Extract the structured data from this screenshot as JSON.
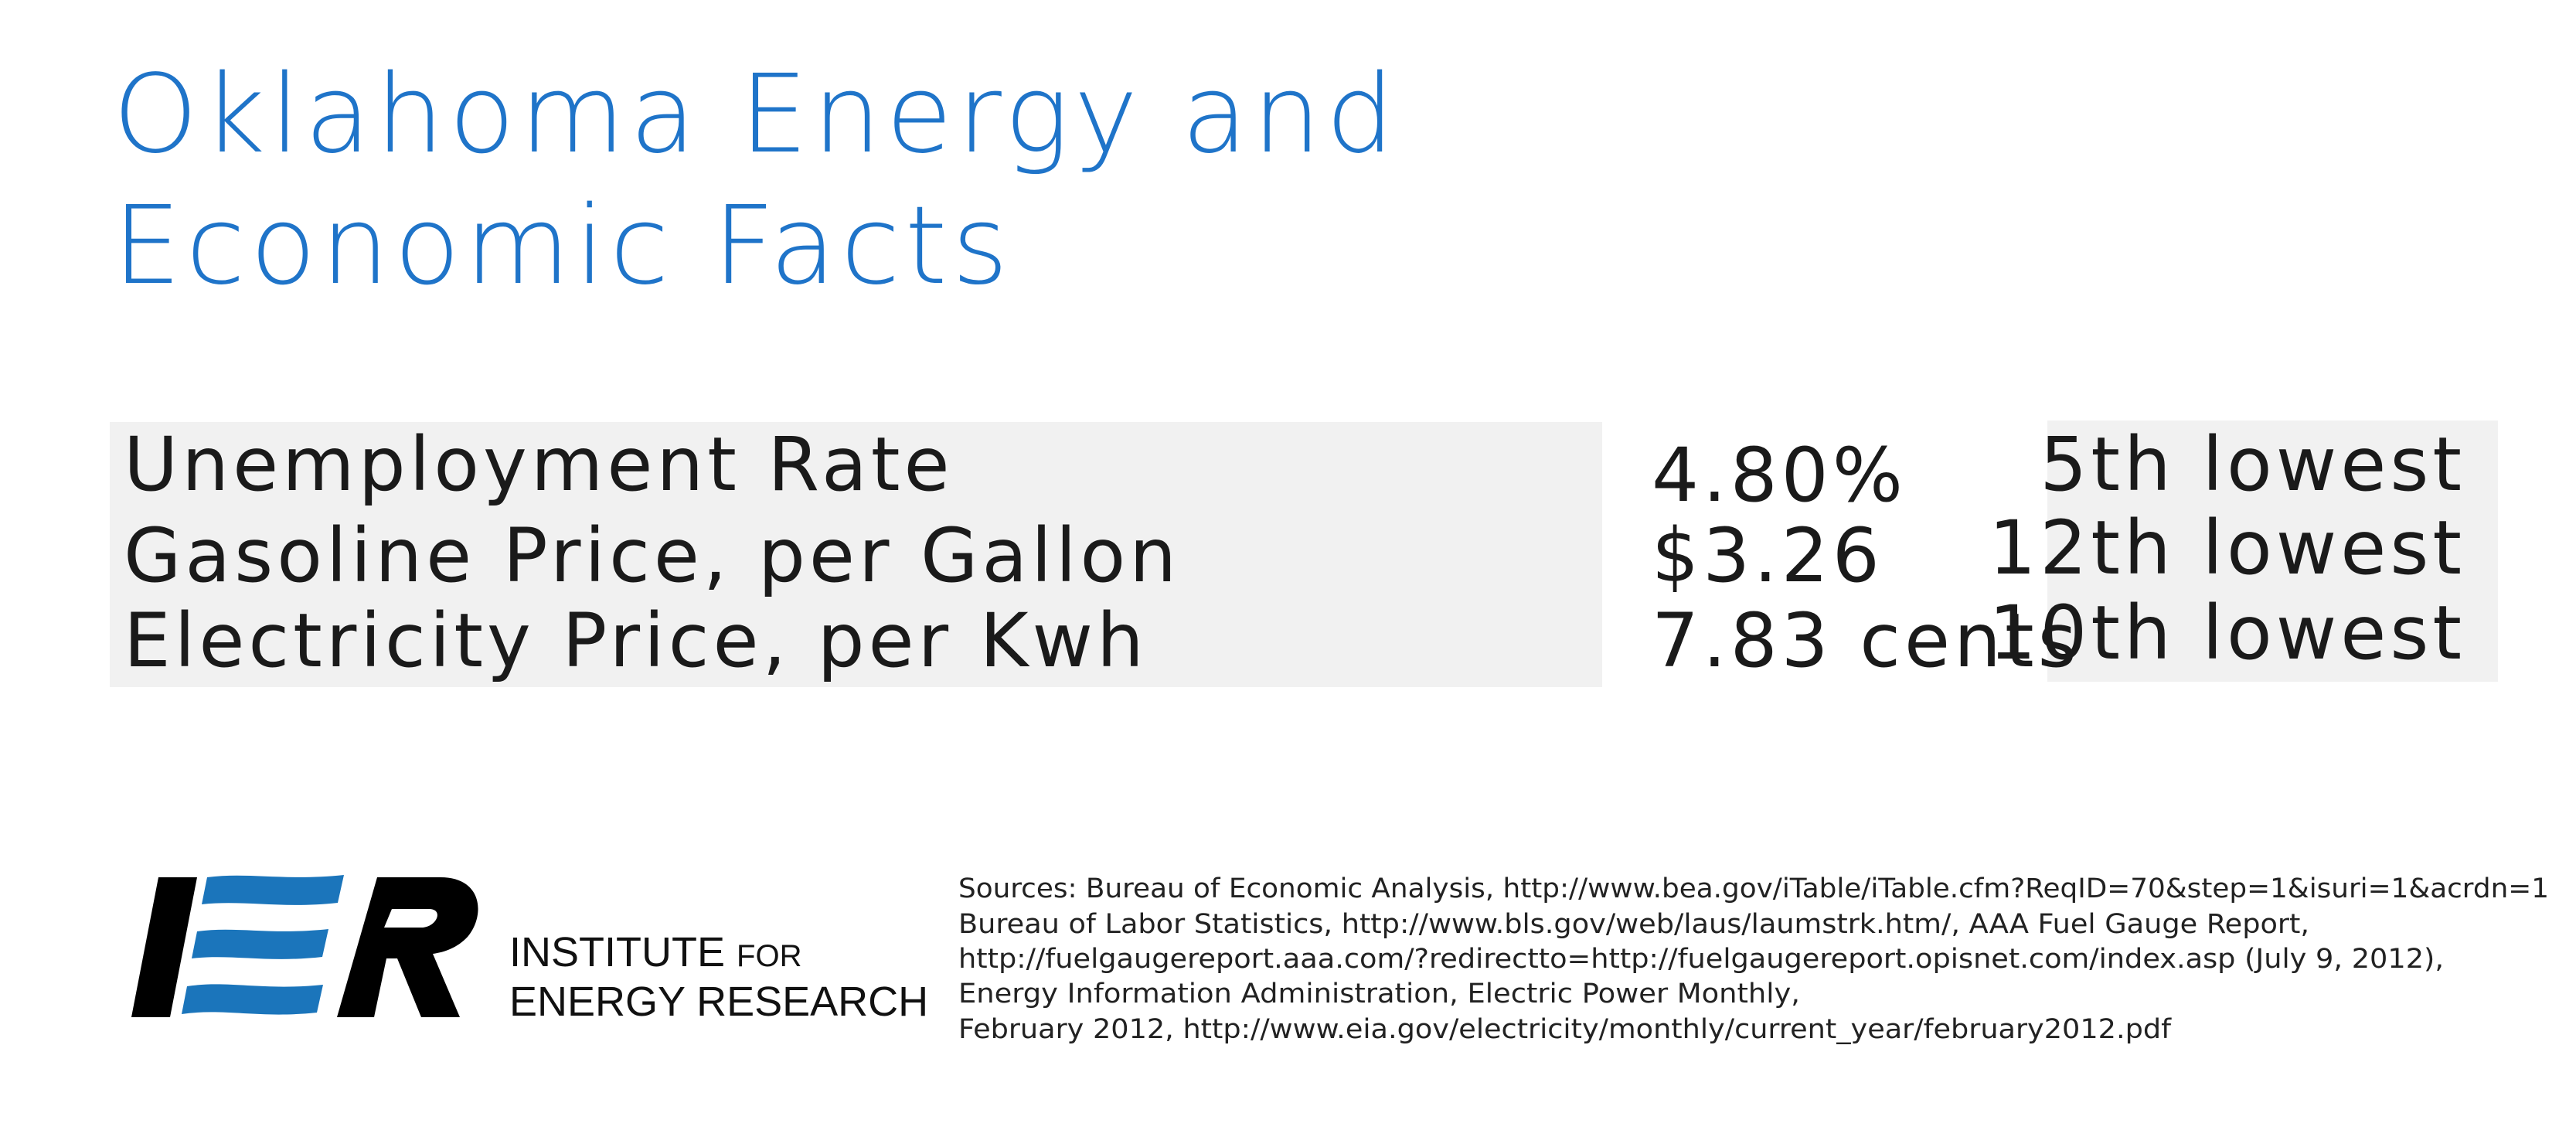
{
  "title": [
    "Oklahoma Energy and",
    "Economic Facts"
  ],
  "table": {
    "rows": [
      [
        "Unemployment Rate",
        "4.80%",
        "5th lowest"
      ],
      [
        "Gasoline Price, per Gallon",
        "$3.26",
        "12th lowest"
      ],
      [
        "Electricity Price, per Kwh",
        "7.83 cents",
        "10th lowest"
      ]
    ]
  },
  "logo": {
    "line1": [
      "INSTITUTE",
      "FOR"
    ],
    "line2": "ENERGY RESEARCH"
  },
  "sources": [
    "Sources: Bureau of Economic Analysis, http://www.bea.gov/iTable/iTable.cfm?ReqID=70&step=1&isuri=1&acrdn=1",
    "Bureau of Labor Statistics, http://www.bls.gov/web/laus/laumstrk.htm/, AAA Fuel Gauge Report,",
    "http://fuelgaugereport.aaa.com/?redirectto=http://fuelgaugereport.opisnet.com/index.asp (July 9, 2012),",
    "Energy Information Administration, Electric Power Monthly,",
    "February 2012, http://www.eia.gov/electricity/monthly/current_year/february2012.pdf"
  ]
}
